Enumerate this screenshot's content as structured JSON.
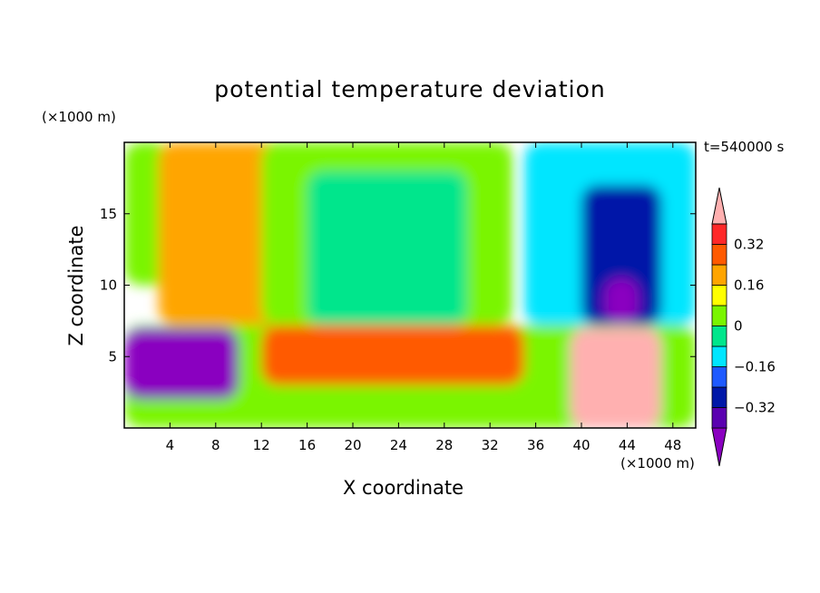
{
  "chart_data": {
    "type": "heatmap",
    "title": "potential temperature deviation",
    "xlabel": "X coordinate",
    "ylabel": "Z coordinate",
    "x_unit": "(×1000 m)",
    "y_unit": "(×1000 m)",
    "time_label": "t=540000 s",
    "xlim": [
      0,
      50
    ],
    "ylim": [
      0,
      20
    ],
    "x_ticks": [
      4,
      8,
      12,
      16,
      20,
      24,
      28,
      32,
      36,
      40,
      44,
      48
    ],
    "y_ticks": [
      5,
      10,
      15
    ],
    "colorbar": {
      "levels": [
        -0.48,
        -0.4,
        -0.32,
        -0.24,
        -0.16,
        -0.08,
        0,
        0.08,
        0.16,
        0.24,
        0.32,
        0.4
      ],
      "labels": [
        "0.32",
        "0.16",
        "0",
        "−0.16",
        "−0.32"
      ],
      "label_values": [
        0.32,
        0.16,
        0,
        -0.16,
        -0.32
      ],
      "colors": [
        "#8A00C0",
        "#5A00B0",
        "#0018A8",
        "#1E5AFF",
        "#00E6FF",
        "#00E68C",
        "#7AF500",
        "#FFFF00",
        "#FFA500",
        "#FF5A00",
        "#FF2828",
        "#FFB0B0"
      ],
      "extend": "both"
    },
    "regions": [
      {
        "x": [
          0,
          4
        ],
        "z": [
          10,
          20
        ],
        "value": 0.05
      },
      {
        "x": [
          3,
          17
        ],
        "z": [
          7.2,
          20
        ],
        "value": 0.18
      },
      {
        "x": [
          4,
          10
        ],
        "z": [
          7.2,
          14
        ],
        "value": 0.22
      },
      {
        "x": [
          12,
          34
        ],
        "z": [
          7.2,
          20
        ],
        "value": 0.05
      },
      {
        "x": [
          16,
          30
        ],
        "z": [
          7.2,
          18
        ],
        "value": -0.02
      },
      {
        "x": [
          35,
          50
        ],
        "z": [
          7.2,
          20
        ],
        "value": -0.12
      },
      {
        "x": [
          40,
          47
        ],
        "z": [
          7.2,
          17
        ],
        "value": -0.3
      },
      {
        "x": [
          42,
          45
        ],
        "z": [
          7.2,
          10.5
        ],
        "value": -0.42
      },
      {
        "x": [
          0,
          50
        ],
        "z": [
          0,
          7.2
        ],
        "value": 0.0
      },
      {
        "x": [
          0,
          10
        ],
        "z": [
          2,
          7
        ],
        "value": -0.45
      },
      {
        "x": [
          12,
          35
        ],
        "z": [
          3,
          7.2
        ],
        "value": 0.3
      },
      {
        "x": [
          39,
          47
        ],
        "z": [
          0,
          7
        ],
        "value": 0.42
      }
    ]
  }
}
